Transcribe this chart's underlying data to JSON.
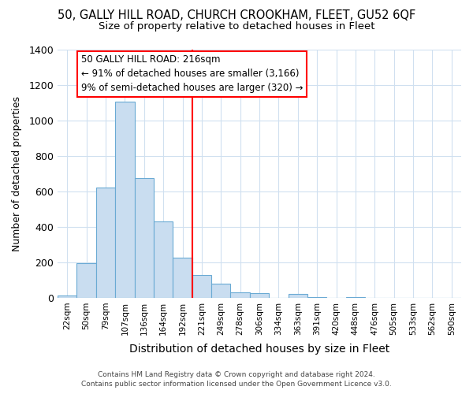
{
  "title": "50, GALLY HILL ROAD, CHURCH CROOKHAM, FLEET, GU52 6QF",
  "subtitle": "Size of property relative to detached houses in Fleet",
  "xlabel": "Distribution of detached houses by size in Fleet",
  "ylabel": "Number of detached properties",
  "bar_color": "#c9ddf0",
  "bar_edge_color": "#6aaad4",
  "categories": [
    "22sqm",
    "50sqm",
    "79sqm",
    "107sqm",
    "136sqm",
    "164sqm",
    "192sqm",
    "221sqm",
    "249sqm",
    "278sqm",
    "306sqm",
    "334sqm",
    "363sqm",
    "391sqm",
    "420sqm",
    "448sqm",
    "476sqm",
    "505sqm",
    "533sqm",
    "562sqm",
    "590sqm"
  ],
  "values": [
    14,
    195,
    620,
    1105,
    675,
    430,
    225,
    130,
    80,
    30,
    25,
    0,
    20,
    5,
    0,
    3,
    0,
    0,
    0,
    0,
    0
  ],
  "ylim": [
    0,
    1400
  ],
  "yticks": [
    0,
    200,
    400,
    600,
    800,
    1000,
    1200,
    1400
  ],
  "property_bin": 7,
  "annotation_title": "50 GALLY HILL ROAD: 216sqm",
  "annotation_line1": "← 91% of detached houses are smaller (3,166)",
  "annotation_line2": "9% of semi-detached houses are larger (320) →",
  "footer1": "Contains HM Land Registry data © Crown copyright and database right 2024.",
  "footer2": "Contains public sector information licensed under the Open Government Licence v3.0.",
  "background_color": "#ffffff",
  "plot_bg_color": "#ffffff",
  "grid_color": "#d0e0f0"
}
